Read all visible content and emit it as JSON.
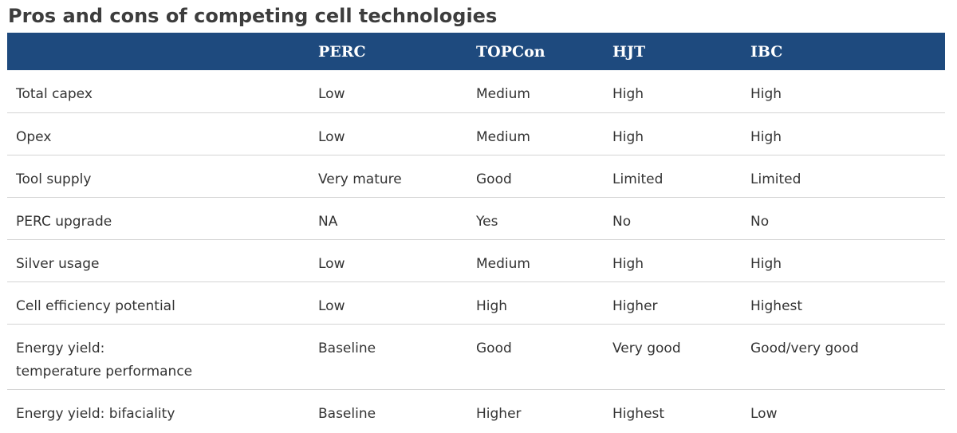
{
  "title": "Pros and cons of competing cell technologies",
  "table": {
    "headers": [
      "",
      "PERC",
      "TOPCon",
      "HJT",
      "IBC"
    ],
    "rows": [
      {
        "label": [
          "Total capex"
        ],
        "cells": [
          "Low",
          "Medium",
          "High",
          "High"
        ]
      },
      {
        "label": [
          "Opex"
        ],
        "cells": [
          "Low",
          "Medium",
          "High",
          "High"
        ]
      },
      {
        "label": [
          "Tool supply"
        ],
        "cells": [
          "Very mature",
          "Good",
          "Limited",
          "Limited"
        ]
      },
      {
        "label": [
          "PERC upgrade"
        ],
        "cells": [
          "NA",
          "Yes",
          "No",
          "No"
        ]
      },
      {
        "label": [
          "Silver usage"
        ],
        "cells": [
          "Low",
          "Medium",
          "High",
          "High"
        ]
      },
      {
        "label": [
          "Cell efficiency potential"
        ],
        "cells": [
          "Low",
          "High",
          "Higher",
          "Highest"
        ]
      },
      {
        "label": [
          "Energy yield:",
          "temperature performance"
        ],
        "cells": [
          "Baseline",
          "Good",
          "Very good",
          "Good/very good"
        ]
      },
      {
        "label": [
          "Energy yield: bifaciality"
        ],
        "cells": [
          "Baseline",
          "Higher",
          "Highest",
          "Low"
        ]
      }
    ]
  },
  "colors": {
    "header_bg": "#1e4a7e",
    "header_text": "#ffffff",
    "body_text": "#333333",
    "row_divider": "#d4d4d4"
  }
}
